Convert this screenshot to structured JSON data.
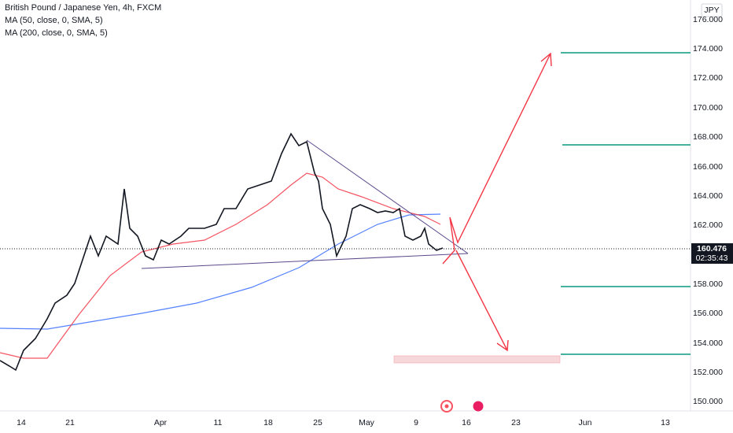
{
  "header": {
    "title": "British Pound / Japanese Yen, 4h, FXCM",
    "indicators": [
      "MA (50, close, 0, SMA, 5)",
      "MA (200, close, 0, SMA, 5)"
    ]
  },
  "price_axis": {
    "currency": "JPY",
    "ticks": [
      "176.000",
      "174.000",
      "172.000",
      "170.000",
      "168.000",
      "166.000",
      "164.000",
      "162.000",
      "158.000",
      "156.000",
      "154.000",
      "152.000",
      "150.000"
    ],
    "last_price": "160.476",
    "countdown": "02:35:43"
  },
  "time_axis": {
    "ticks": [
      "14",
      "21",
      "Apr",
      "11",
      "18",
      "25",
      "May",
      "9",
      "16",
      "23",
      "Jun",
      "13"
    ]
  }
}
